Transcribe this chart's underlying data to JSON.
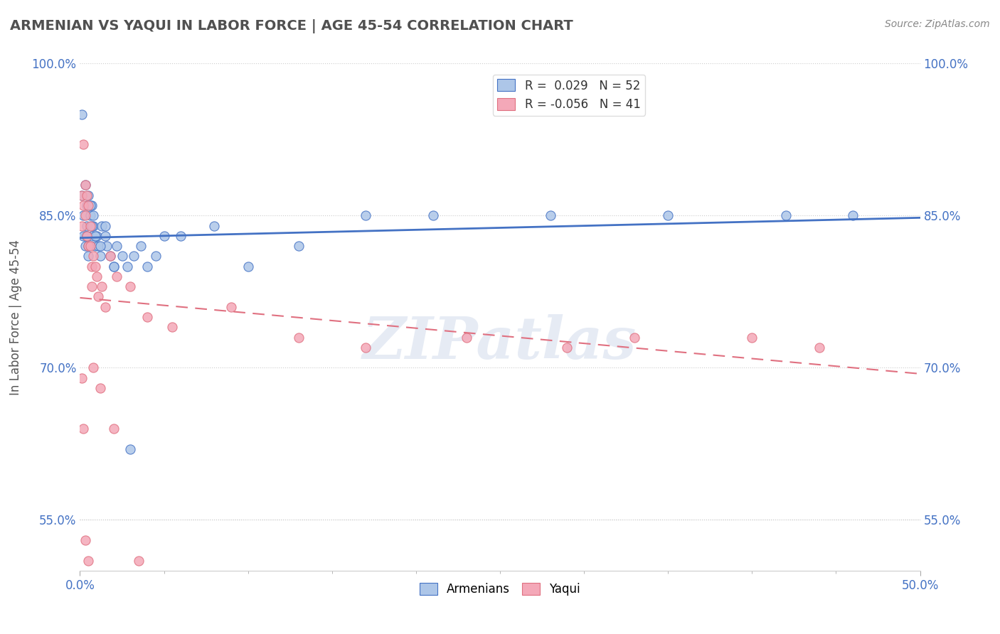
{
  "title": "ARMENIAN VS YAQUI IN LABOR FORCE | AGE 45-54 CORRELATION CHART",
  "source_text": "Source: ZipAtlas.com",
  "ylabel": "In Labor Force | Age 45-54",
  "legend_label_armenians": "Armenians",
  "legend_label_yaqui": "Yaqui",
  "R_armenians": 0.029,
  "N_armenians": 52,
  "R_yaqui": -0.056,
  "N_yaqui": 41,
  "xlim": [
    0.0,
    0.5
  ],
  "ylim": [
    0.5,
    1.0
  ],
  "color_armenians": "#adc6e8",
  "color_yaqui": "#f4a8b8",
  "line_color_armenians": "#4472c4",
  "line_color_yaqui": "#e07080",
  "watermark": "ZIPatlas",
  "background_color": "#ffffff",
  "title_color": "#505050",
  "armenians_x": [
    0.001,
    0.002,
    0.003,
    0.003,
    0.004,
    0.004,
    0.005,
    0.005,
    0.006,
    0.007,
    0.007,
    0.008,
    0.008,
    0.009,
    0.01,
    0.011,
    0.012,
    0.013,
    0.015,
    0.016,
    0.018,
    0.02,
    0.022,
    0.025,
    0.028,
    0.032,
    0.036,
    0.04,
    0.045,
    0.06,
    0.08,
    0.1,
    0.13,
    0.17,
    0.21,
    0.28,
    0.35,
    0.42,
    0.46,
    0.001,
    0.002,
    0.003,
    0.004,
    0.005,
    0.006,
    0.007,
    0.009,
    0.012,
    0.015,
    0.02,
    0.03,
    0.05
  ],
  "armenians_y": [
    0.87,
    0.85,
    0.88,
    0.83,
    0.86,
    0.84,
    0.87,
    0.81,
    0.85,
    0.83,
    0.86,
    0.85,
    0.84,
    0.82,
    0.83,
    0.82,
    0.81,
    0.84,
    0.83,
    0.82,
    0.81,
    0.8,
    0.82,
    0.81,
    0.8,
    0.81,
    0.82,
    0.8,
    0.81,
    0.83,
    0.84,
    0.8,
    0.82,
    0.85,
    0.85,
    0.85,
    0.85,
    0.85,
    0.85,
    0.95,
    0.83,
    0.82,
    0.83,
    0.82,
    0.86,
    0.84,
    0.83,
    0.82,
    0.84,
    0.8,
    0.62,
    0.83
  ],
  "yaqui_x": [
    0.001,
    0.001,
    0.002,
    0.002,
    0.003,
    0.003,
    0.004,
    0.004,
    0.005,
    0.005,
    0.006,
    0.006,
    0.007,
    0.007,
    0.008,
    0.009,
    0.01,
    0.011,
    0.013,
    0.015,
    0.018,
    0.022,
    0.03,
    0.04,
    0.055,
    0.09,
    0.13,
    0.17,
    0.23,
    0.29,
    0.33,
    0.4,
    0.44,
    0.001,
    0.002,
    0.003,
    0.005,
    0.008,
    0.012,
    0.02,
    0.035
  ],
  "yaqui_y": [
    0.87,
    0.84,
    0.86,
    0.92,
    0.85,
    0.88,
    0.83,
    0.87,
    0.82,
    0.86,
    0.84,
    0.82,
    0.8,
    0.78,
    0.81,
    0.8,
    0.79,
    0.77,
    0.78,
    0.76,
    0.81,
    0.79,
    0.78,
    0.75,
    0.74,
    0.76,
    0.73,
    0.72,
    0.73,
    0.72,
    0.73,
    0.73,
    0.72,
    0.69,
    0.64,
    0.53,
    0.51,
    0.7,
    0.68,
    0.64,
    0.51
  ]
}
